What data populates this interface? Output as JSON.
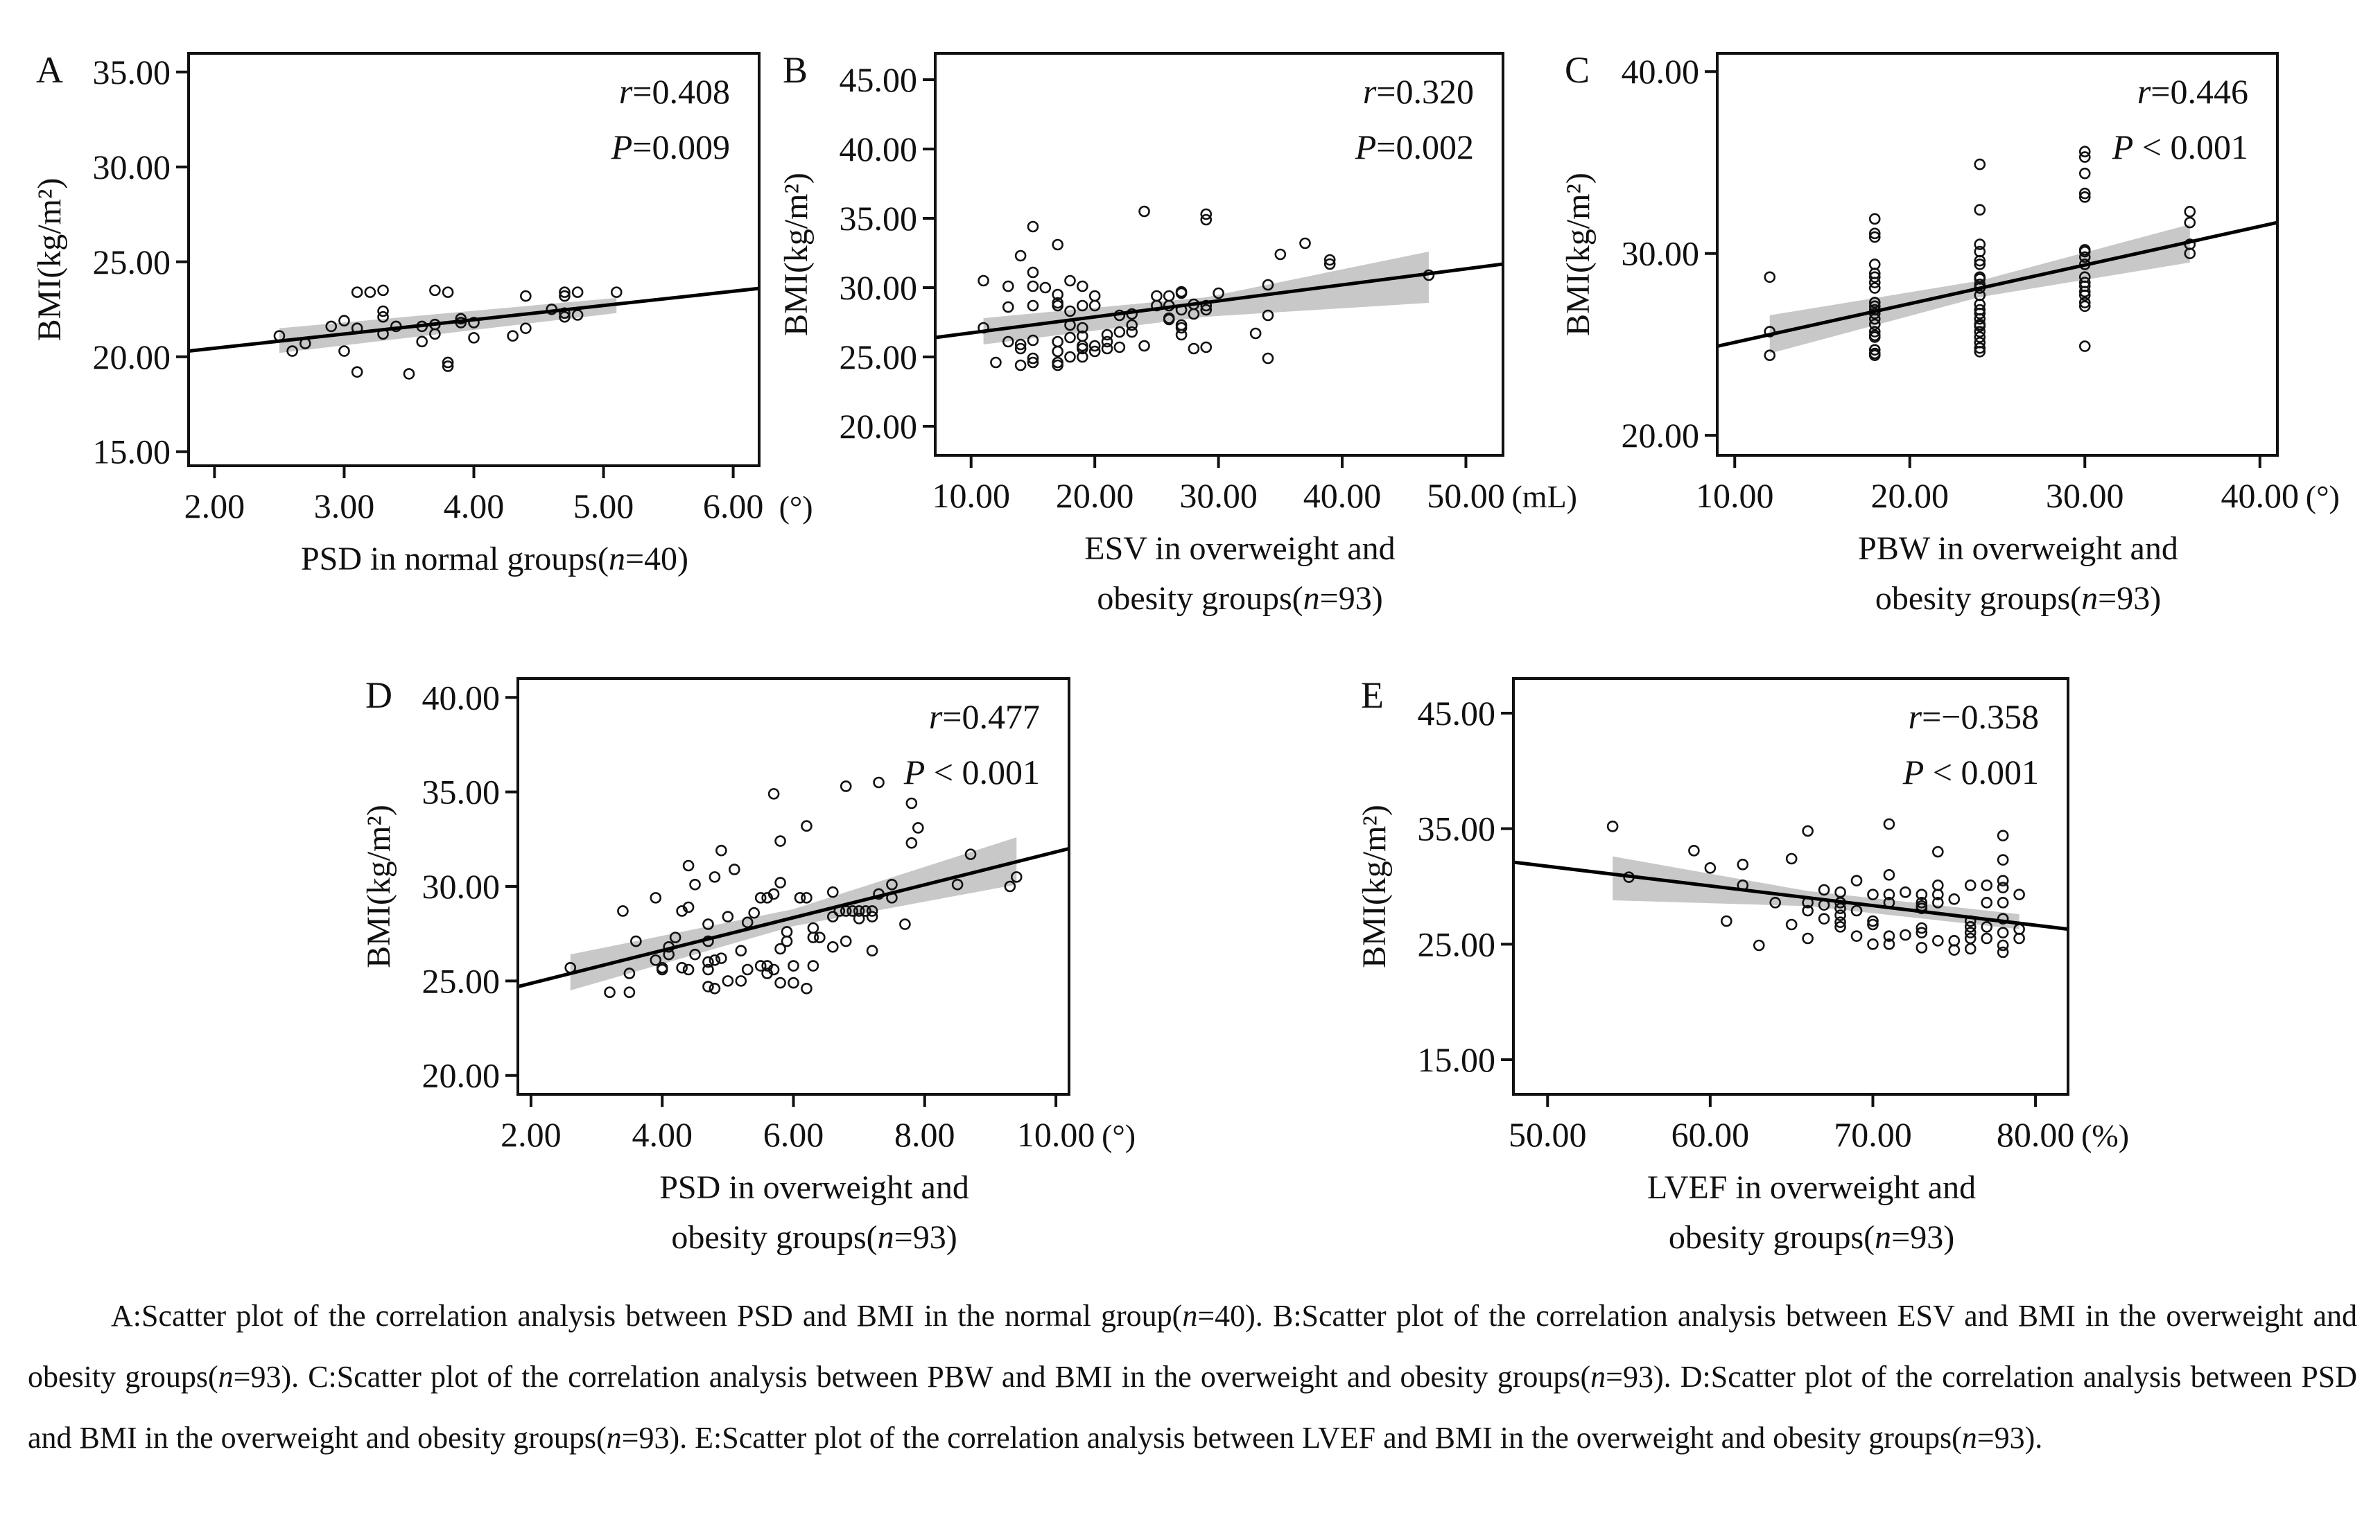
{
  "figure": {
    "panels": [
      {
        "id": "A",
        "stats": {
          "r": "r=0.408",
          "p": "P=0.009"
        },
        "ylabel": "BMI(kg/m²)",
        "xlabel_lines": [
          "PSD in normal groups(n=40)"
        ],
        "x_unit": "(°)"
      },
      {
        "id": "B",
        "stats": {
          "r": "r=0.320",
          "p": "P=0.002"
        },
        "ylabel": "BMI(kg/m²)",
        "xlabel_lines": [
          "ESV in overweight and",
          "obesity groups(n=93)"
        ],
        "x_unit": "(mL)"
      },
      {
        "id": "C",
        "stats": {
          "r": "r=0.446",
          "p": "P < 0.001"
        },
        "ylabel": "BMI(kg/m²)",
        "xlabel_lines": [
          "PBW in overweight and",
          "obesity groups(n=93)"
        ],
        "x_unit": "(°)"
      },
      {
        "id": "D",
        "stats": {
          "r": "r=0.477",
          "p": "P < 0.001"
        },
        "ylabel": "BMI(kg/m²)",
        "xlabel_lines": [
          "PSD in overweight and",
          "obesity groups(n=93)"
        ],
        "x_unit": "(°)"
      },
      {
        "id": "E",
        "stats": {
          "r": "r=−0.358",
          "p": "P < 0.001"
        },
        "ylabel": "BMI(kg/m²)",
        "xlabel_lines": [
          "LVEF in overweight and",
          "obesity groups(n=93)"
        ],
        "x_unit": "(%)"
      }
    ],
    "caption": "A:Scatter plot of the correlation analysis between PSD and BMI in the normal group(n=40). B:Scatter plot of the correlation analysis between ESV and BMI in the overweight and obesity groups(n=93). C:Scatter plot of the correlation analysis between PBW and BMI in the overweight and obesity groups(n=93). D:Scatter plot of the correlation analysis between PSD and BMI in the overweight and obesity groups(n=93). E:Scatter plot of the correlation analysis between LVEF and BMI in the overweight and obesity groups(n=93)."
  },
  "chart_data": [
    {
      "panel": "A",
      "type": "scatter",
      "title": "",
      "xlabel": "PSD in normal groups(n=40)",
      "x_unit": "(°)",
      "ylabel": "BMI(kg/m²)",
      "xlim": [
        1.8,
        6.2
      ],
      "ylim": [
        14.26,
        35.98
      ],
      "xticks": [
        2,
        3,
        4,
        5,
        6
      ],
      "xtick_labels": [
        "2.00",
        "3.00",
        "4.00",
        "5.00",
        "6.00"
      ],
      "yticks": [
        15,
        20,
        25,
        30,
        35
      ],
      "ytick_labels": [
        "15.00",
        "20.00",
        "25.00",
        "30.00",
        "35.00"
      ],
      "grid": false,
      "annotations": [
        "r=0.408",
        "P=0.009"
      ],
      "fit_line": {
        "x": [
          1.8,
          6.2
        ],
        "y": [
          20.3,
          23.6
        ]
      },
      "ci_band": {
        "x": [
          2.5,
          5.1
        ],
        "lower": [
          20.2,
          22.3
        ],
        "upper": [
          21.5,
          23.1
        ]
      },
      "x": [
        2.5,
        2.6,
        2.7,
        2.9,
        3.0,
        3.0,
        3.1,
        3.1,
        3.1,
        3.2,
        3.3,
        3.3,
        3.3,
        3.3,
        3.4,
        3.5,
        3.6,
        3.6,
        3.7,
        3.7,
        3.7,
        3.8,
        3.8,
        3.8,
        3.9,
        3.9,
        4.0,
        4.0,
        4.3,
        4.4,
        4.4,
        4.6,
        4.7,
        4.7,
        4.7,
        4.7,
        4.8,
        4.8,
        5.1
      ],
      "y": [
        21.1,
        20.3,
        20.7,
        21.6,
        21.9,
        20.3,
        23.4,
        21.5,
        19.2,
        23.4,
        23.5,
        22.4,
        22.1,
        21.2,
        21.6,
        19.1,
        21.6,
        20.8,
        23.5,
        21.7,
        21.2,
        23.4,
        19.7,
        19.5,
        22.0,
        21.8,
        21.8,
        21.0,
        21.1,
        23.2,
        21.5,
        22.5,
        23.4,
        23.2,
        22.3,
        22.1,
        23.4,
        22.2,
        23.4
      ]
    },
    {
      "panel": "B",
      "type": "scatter",
      "title": "",
      "xlabel": "ESV in overweight and obesity groups(n=93)",
      "x_unit": "(mL)",
      "ylabel": "BMI(kg/m²)",
      "xlim": [
        7.1,
        53.0
      ],
      "ylim": [
        17.9,
        46.9
      ],
      "xticks": [
        10,
        20,
        30,
        40,
        50
      ],
      "xtick_labels": [
        "10.00",
        "20.00",
        "30.00",
        "40.00",
        "50.00"
      ],
      "yticks": [
        20,
        25,
        30,
        35,
        40,
        45
      ],
      "ytick_labels": [
        "20.00",
        "25.00",
        "30.00",
        "35.00",
        "40.00",
        "45.00"
      ],
      "grid": false,
      "annotations": [
        "r=0.320",
        "P=0.002"
      ],
      "fit_line": {
        "x": [
          7.1,
          53.0
        ],
        "y": [
          26.4,
          31.7
        ]
      },
      "ci_band": {
        "x": [
          11,
          29,
          47
        ],
        "lower": [
          25.9,
          27.9,
          28.9
        ],
        "upper": [
          27.8,
          29.3,
          32.6
        ]
      },
      "x": [
        11,
        11,
        12,
        13,
        13,
        13,
        14,
        14,
        14,
        14,
        15,
        15,
        15,
        15,
        15,
        15,
        15,
        16,
        17,
        17,
        17,
        17,
        17,
        17,
        17,
        17,
        18,
        18,
        18,
        18,
        18,
        19,
        19,
        19,
        19,
        19,
        19,
        19,
        20,
        20,
        20,
        20,
        21,
        21,
        21,
        22,
        22,
        22,
        23,
        23,
        23,
        24,
        24,
        25,
        25,
        26,
        26,
        26,
        26,
        27,
        27,
        27,
        27,
        27,
        27,
        28,
        28,
        28,
        29,
        29,
        29,
        29,
        29,
        30,
        33,
        34,
        34,
        34,
        35,
        37,
        39,
        39,
        47
      ],
      "y": [
        30.5,
        27.1,
        24.6,
        30.1,
        28.6,
        26.1,
        32.3,
        25.9,
        25.6,
        24.4,
        34.4,
        31.1,
        30.1,
        28.7,
        26.2,
        24.9,
        24.6,
        30.0,
        33.1,
        29.5,
        28.9,
        28.7,
        26.1,
        25.4,
        24.6,
        24.4,
        30.5,
        28.3,
        27.3,
        26.4,
        25.0,
        30.1,
        28.7,
        27.1,
        26.5,
        25.8,
        25.6,
        25.0,
        29.4,
        28.7,
        25.8,
        25.4,
        26.6,
        26.1,
        25.6,
        28.0,
        26.8,
        25.7,
        28.1,
        27.3,
        26.8,
        25.8,
        35.5,
        29.4,
        28.7,
        29.4,
        28.7,
        27.8,
        27.7,
        29.7,
        29.6,
        28.4,
        27.3,
        27.1,
        26.6,
        28.8,
        28.1,
        25.6,
        28.7,
        28.4,
        25.7,
        35.3,
        34.9,
        29.6,
        26.7,
        30.2,
        28.0,
        24.9,
        32.4,
        33.2,
        32.0,
        31.7,
        30.9
      ]
    },
    {
      "panel": "C",
      "type": "scatter",
      "title": "",
      "xlabel": "PBW in overweight and obesity groups(n=93)",
      "x_unit": "(°)",
      "ylabel": "BMI(kg/m²)",
      "xlim": [
        9.0,
        41.0
      ],
      "ylim": [
        18.9,
        41.0
      ],
      "xticks": [
        10,
        20,
        30,
        40
      ],
      "xtick_labels": [
        "10.00",
        "20.00",
        "30.00",
        "40.00"
      ],
      "yticks": [
        20,
        30,
        40
      ],
      "ytick_labels": [
        "20.00",
        "30.00",
        "40.00"
      ],
      "grid": false,
      "annotations": [
        "r=0.446",
        "P < 0.001"
      ],
      "fit_line": {
        "x": [
          9.0,
          41.0
        ],
        "y": [
          24.9,
          31.7
        ]
      },
      "ci_band": {
        "x": [
          12,
          24,
          36
        ],
        "lower": [
          24.5,
          27.6,
          29.5
        ],
        "upper": [
          26.6,
          28.5,
          31.6
        ]
      },
      "x": [
        12,
        12,
        12,
        18,
        18,
        18,
        18,
        18,
        18,
        18,
        18,
        18,
        18,
        18,
        18,
        18,
        18,
        18,
        18,
        18,
        18,
        18,
        18,
        24,
        24,
        24,
        24,
        24,
        24,
        24,
        24,
        24,
        24,
        24,
        24,
        24,
        24,
        24,
        24,
        24,
        24,
        24,
        24,
        24,
        24,
        30,
        30,
        30,
        30,
        30,
        30,
        30,
        30,
        30,
        30,
        30,
        30,
        30,
        30,
        30,
        30,
        30,
        36,
        36,
        36,
        36
      ],
      "y": [
        28.7,
        25.7,
        24.4,
        31.9,
        31.1,
        30.9,
        29.4,
        28.9,
        28.7,
        28.4,
        28.1,
        27.3,
        27.1,
        26.9,
        26.7,
        26.4,
        26.1,
        25.7,
        25.5,
        25.4,
        24.7,
        24.5,
        24.4,
        34.9,
        32.4,
        30.5,
        30.1,
        29.6,
        29.4,
        28.7,
        28.6,
        28.3,
        28.1,
        27.7,
        27.2,
        26.9,
        26.7,
        26.4,
        26.1,
        26.0,
        25.7,
        25.4,
        25.1,
        24.8,
        24.6,
        35.6,
        35.3,
        34.4,
        33.3,
        33.1,
        30.2,
        30.1,
        29.8,
        29.4,
        28.7,
        28.4,
        28.2,
        27.9,
        27.7,
        27.3,
        27.1,
        24.9,
        32.3,
        31.7,
        30.5,
        30.0
      ]
    },
    {
      "panel": "D",
      "type": "scatter",
      "title": "",
      "xlabel": "PSD in overweight and obesity groups(n=93)",
      "x_unit": "(°)",
      "ylabel": "BMI(kg/m²)",
      "xlim": [
        1.8,
        10.2
      ],
      "ylim": [
        19.0,
        41.0
      ],
      "xticks": [
        2,
        4,
        6,
        8,
        10
      ],
      "xtick_labels": [
        "2.00",
        "4.00",
        "6.00",
        "8.00",
        "10.00"
      ],
      "yticks": [
        20,
        25,
        30,
        35,
        40
      ],
      "ytick_labels": [
        "20.00",
        "25.00",
        "30.00",
        "35.00",
        "40.00"
      ],
      "grid": false,
      "annotations": [
        "r=0.477",
        "P < 0.001"
      ],
      "fit_line": {
        "x": [
          1.8,
          10.2
        ],
        "y": [
          24.7,
          32.0
        ]
      },
      "ci_band": {
        "x": [
          2.6,
          6.0,
          9.4
        ],
        "lower": [
          24.5,
          27.9,
          30.1
        ],
        "upper": [
          26.4,
          28.8,
          32.6
        ]
      },
      "x": [
        2.6,
        3.2,
        3.4,
        3.5,
        3.5,
        3.6,
        3.9,
        3.9,
        4.0,
        4.0,
        4.1,
        4.1,
        4.2,
        4.3,
        4.3,
        4.4,
        4.4,
        4.4,
        4.5,
        4.5,
        4.7,
        4.7,
        4.7,
        4.7,
        4.7,
        4.8,
        4.8,
        4.8,
        4.9,
        4.9,
        5.0,
        5.0,
        5.1,
        5.2,
        5.2,
        5.3,
        5.3,
        5.4,
        5.5,
        5.5,
        5.6,
        5.6,
        5.6,
        5.7,
        5.7,
        5.7,
        5.8,
        5.8,
        5.8,
        5.8,
        5.9,
        5.9,
        6.0,
        6.0,
        6.1,
        6.2,
        6.2,
        6.2,
        6.3,
        6.3,
        6.3,
        6.4,
        6.6,
        6.6,
        6.6,
        6.7,
        6.8,
        6.8,
        6.8,
        6.9,
        7.0,
        7.0,
        7.1,
        7.2,
        7.2,
        7.2,
        7.3,
        7.3,
        7.5,
        7.5,
        7.7,
        7.8,
        7.8,
        7.9,
        8.5,
        8.7,
        9.3,
        9.4
      ],
      "y": [
        25.7,
        24.4,
        28.7,
        25.4,
        24.4,
        27.1,
        29.4,
        26.1,
        25.7,
        25.6,
        26.8,
        26.4,
        27.3,
        28.7,
        25.7,
        28.9,
        31.1,
        25.6,
        30.1,
        26.4,
        28.0,
        27.1,
        26.0,
        25.6,
        24.7,
        30.5,
        26.1,
        24.6,
        31.9,
        26.2,
        28.4,
        25.0,
        30.9,
        26.6,
        25.0,
        28.1,
        25.6,
        28.6,
        29.4,
        25.8,
        29.4,
        25.8,
        25.4,
        34.9,
        29.6,
        25.6,
        32.4,
        30.2,
        26.7,
        24.9,
        27.6,
        27.1,
        25.8,
        24.9,
        29.4,
        33.2,
        29.4,
        24.6,
        27.8,
        27.3,
        25.8,
        27.3,
        29.7,
        28.4,
        26.8,
        28.7,
        35.3,
        28.7,
        27.1,
        28.7,
        28.7,
        28.3,
        28.7,
        28.7,
        28.4,
        26.6,
        35.5,
        29.6,
        30.1,
        29.4,
        28.0,
        34.4,
        32.3,
        33.1,
        30.1,
        31.7,
        30.0,
        30.5
      ]
    },
    {
      "panel": "E",
      "type": "scatter",
      "title": "",
      "xlabel": "LVEF in overweight and obesity groups(n=93)",
      "x_unit": "(%)",
      "ylabel": "BMI(kg/m²)",
      "xlim": [
        47.9,
        82.0
      ],
      "ylim": [
        12.0,
        48.0
      ],
      "xticks": [
        50,
        60,
        70,
        80
      ],
      "xtick_labels": [
        "50.00",
        "60.00",
        "70.00",
        "80.00"
      ],
      "yticks": [
        15,
        25,
        35,
        45
      ],
      "ytick_labels": [
        "15.00",
        "25.00",
        "35.00",
        "45.00"
      ],
      "grid": false,
      "annotations": [
        "r=−0.358",
        "P < 0.001"
      ],
      "fit_line": {
        "x": [
          47.9,
          82.0
        ],
        "y": [
          32.1,
          26.3
        ]
      },
      "ci_band": {
        "x": [
          54,
          66,
          79
        ],
        "lower": [
          28.8,
          28.3,
          26.3
        ],
        "upper": [
          32.6,
          29.6,
          27.6
        ]
      },
      "x": [
        54,
        55,
        59,
        60,
        61,
        62,
        62,
        63,
        64,
        65,
        65,
        66,
        66,
        66,
        66,
        67,
        67,
        67,
        68,
        68,
        68,
        68,
        68,
        68,
        69,
        69,
        69,
        70,
        70,
        70,
        70,
        71,
        71,
        71,
        71,
        71,
        71,
        72,
        72,
        73,
        73,
        73,
        73,
        73,
        73,
        73,
        74,
        74,
        74,
        74,
        74,
        75,
        75,
        75,
        76,
        76,
        76,
        76,
        76,
        76,
        77,
        77,
        77,
        77,
        78,
        78,
        78,
        78,
        78,
        78,
        78,
        78,
        78,
        79,
        79,
        79
      ],
      "y": [
        35.2,
        30.8,
        33.1,
        31.6,
        27.0,
        31.9,
        30.1,
        24.9,
        28.6,
        32.4,
        26.7,
        34.8,
        28.6,
        27.9,
        25.5,
        29.7,
        28.4,
        27.2,
        29.5,
        28.6,
        28.1,
        27.5,
        26.9,
        26.5,
        30.5,
        27.9,
        25.7,
        29.3,
        27.0,
        26.7,
        25.0,
        35.4,
        31.0,
        29.3,
        28.6,
        25.7,
        25.0,
        29.5,
        25.8,
        29.3,
        28.6,
        28.3,
        28.1,
        26.4,
        26.0,
        24.7,
        33.0,
        30.1,
        29.3,
        28.6,
        25.3,
        28.9,
        25.3,
        24.5,
        30.1,
        27.0,
        26.5,
        26.0,
        25.5,
        24.6,
        30.1,
        28.6,
        26.5,
        25.5,
        34.4,
        32.3,
        30.5,
        29.9,
        28.6,
        27.2,
        26.0,
        24.9,
        24.3,
        29.3,
        26.3,
        25.5
      ]
    }
  ]
}
